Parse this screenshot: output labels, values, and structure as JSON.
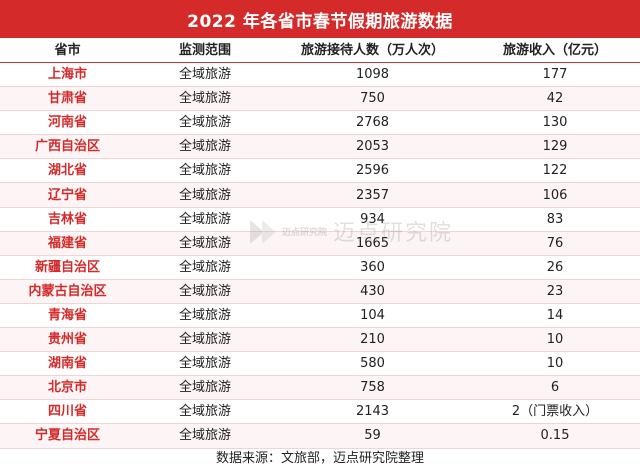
{
  "title": "2022 年各省市春节假期旅游数据",
  "headers": [
    "省市",
    "监测范围",
    "旅游接待人数（万人次）",
    "旅游收入（亿元）"
  ],
  "rows": [
    {
      "province": "上海市",
      "scope": "全域旅游",
      "visitors": "1098",
      "revenue": "177"
    },
    {
      "province": "甘肃省",
      "scope": "全域旅游",
      "visitors": "750",
      "revenue": "42"
    },
    {
      "province": "河南省",
      "scope": "全域旅游",
      "visitors": "2768",
      "revenue": "130"
    },
    {
      "province": "广西自治区",
      "scope": "全域旅游",
      "visitors": "2053",
      "revenue": "129"
    },
    {
      "province": "湖北省",
      "scope": "全域旅游",
      "visitors": "2596",
      "revenue": "122"
    },
    {
      "province": "辽宁省",
      "scope": "全域旅游",
      "visitors": "2357",
      "revenue": "106"
    },
    {
      "province": "吉林省",
      "scope": "全域旅游",
      "visitors": "934",
      "revenue": "83"
    },
    {
      "province": "福建省",
      "scope": "全域旅游",
      "visitors": "1665",
      "revenue": "76"
    },
    {
      "province": "新疆自治区",
      "scope": "全域旅游",
      "visitors": "360",
      "revenue": "26"
    },
    {
      "province": "内蒙古自治区",
      "scope": "全域旅游",
      "visitors": "430",
      "revenue": "23"
    },
    {
      "province": "青海省",
      "scope": "全域旅游",
      "visitors": "104",
      "revenue": "14"
    },
    {
      "province": "贵州省",
      "scope": "全域旅游",
      "visitors": "210",
      "revenue": "10"
    },
    {
      "province": "湖南省",
      "scope": "全域旅游",
      "visitors": "580",
      "revenue": "10"
    },
    {
      "province": "北京市",
      "scope": "全域旅游",
      "visitors": "758",
      "revenue": "6"
    },
    {
      "province": "四川省",
      "scope": "全域旅游",
      "visitors": "2143",
      "revenue": "2（门票收入）"
    },
    {
      "province": "宁夏自治区",
      "scope": "全域旅游",
      "visitors": "59",
      "revenue": "0.15"
    }
  ],
  "watermark": {
    "small": "迈点研究院",
    "large": "迈点研究院"
  },
  "footer": "数据来源：文旅部，迈点研究院整理",
  "colors": {
    "accent": "#d42a2a",
    "row_alt": "#fdf5f5"
  }
}
